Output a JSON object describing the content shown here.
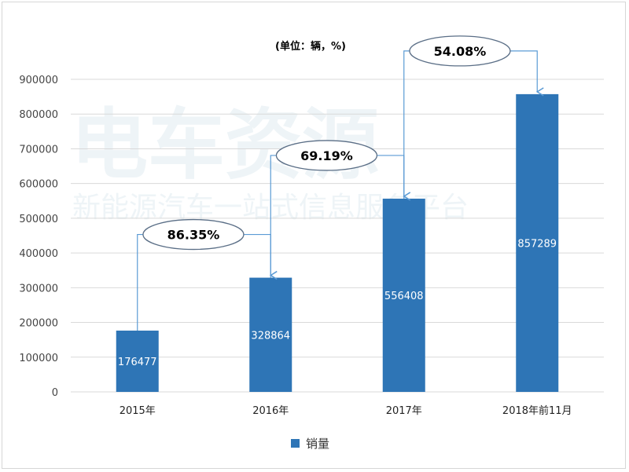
{
  "chart_data": {
    "type": "bar",
    "unit_label": "(单位：辆，%)",
    "categories": [
      "2015年",
      "2016年",
      "2017年",
      "2018年前11月"
    ],
    "series": [
      {
        "name": "销量",
        "values": [
          176477,
          328864,
          556408,
          857289
        ]
      }
    ],
    "growth_labels": [
      "86.35%",
      "69.19%",
      "54.08%"
    ],
    "ylim": [
      0,
      900000
    ],
    "yticks": [
      0,
      100000,
      200000,
      300000,
      400000,
      500000,
      600000,
      700000,
      800000,
      900000
    ],
    "grid": true,
    "legend_position": "bottom",
    "colors": {
      "bar": "#2e75b6",
      "arrow": "#5b9bd5",
      "grid": "#d9d9d9"
    }
  },
  "watermark": {
    "title": "电车资源",
    "subtitle": "新能源汽车一站式信息服务平台"
  }
}
